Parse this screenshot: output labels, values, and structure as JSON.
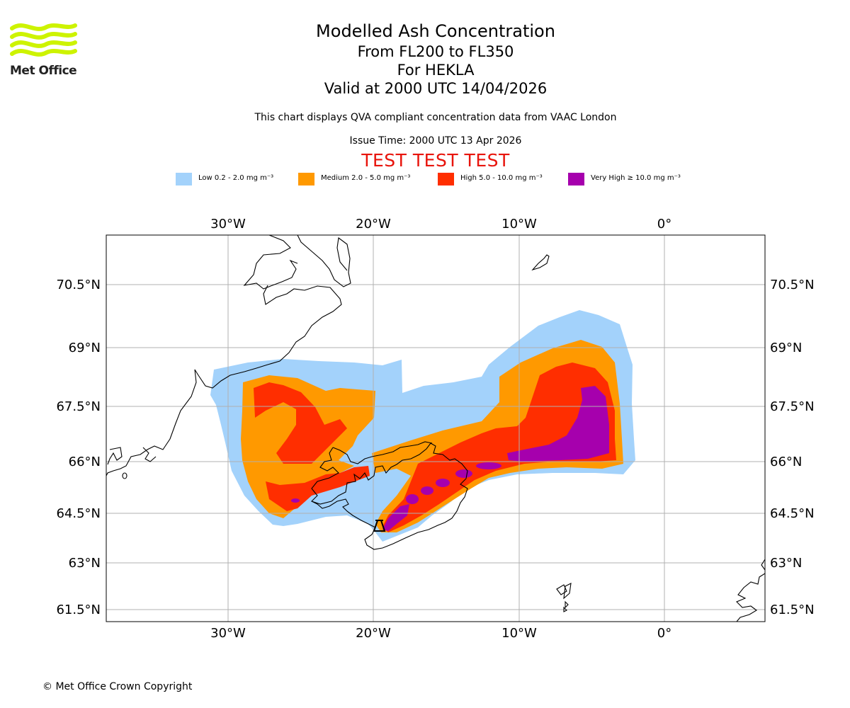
{
  "logo": {
    "text": "Met Office"
  },
  "title": {
    "line1": "Modelled Ash Concentration",
    "line2": "From FL200 to FL350",
    "line3": "For HEKLA",
    "line4": "Valid at 2000 UTC 14/04/2026"
  },
  "description": "This chart displays QVA compliant concentration data from VAAC London",
  "issue_time": "Issue Time: 2000 UTC 13 Apr 2026",
  "test_banner": "TEST TEST TEST",
  "legend": [
    {
      "label": "Low 0.2 - 2.0 mg m⁻³",
      "color": "#a3d2fb"
    },
    {
      "label": "Medium 2.0 - 5.0 mg m⁻³",
      "color": "#ff9900"
    },
    {
      "label": "High 5.0 - 10.0 mg m⁻³",
      "color": "#ff2e00"
    },
    {
      "label": "Very High ≥ 10.0 mg m⁻³",
      "color": "#a600ad"
    }
  ],
  "map": {
    "volcano": "HEKLA",
    "lon_ticks": [
      "30°W",
      "20°W",
      "10°W",
      "0°"
    ],
    "lat_ticks": [
      "70.5°N",
      "69°N",
      "67.5°N",
      "66°N",
      "64.5°N",
      "63°N",
      "61.5°N"
    ]
  },
  "copyright": "© Met Office Crown Copyright"
}
